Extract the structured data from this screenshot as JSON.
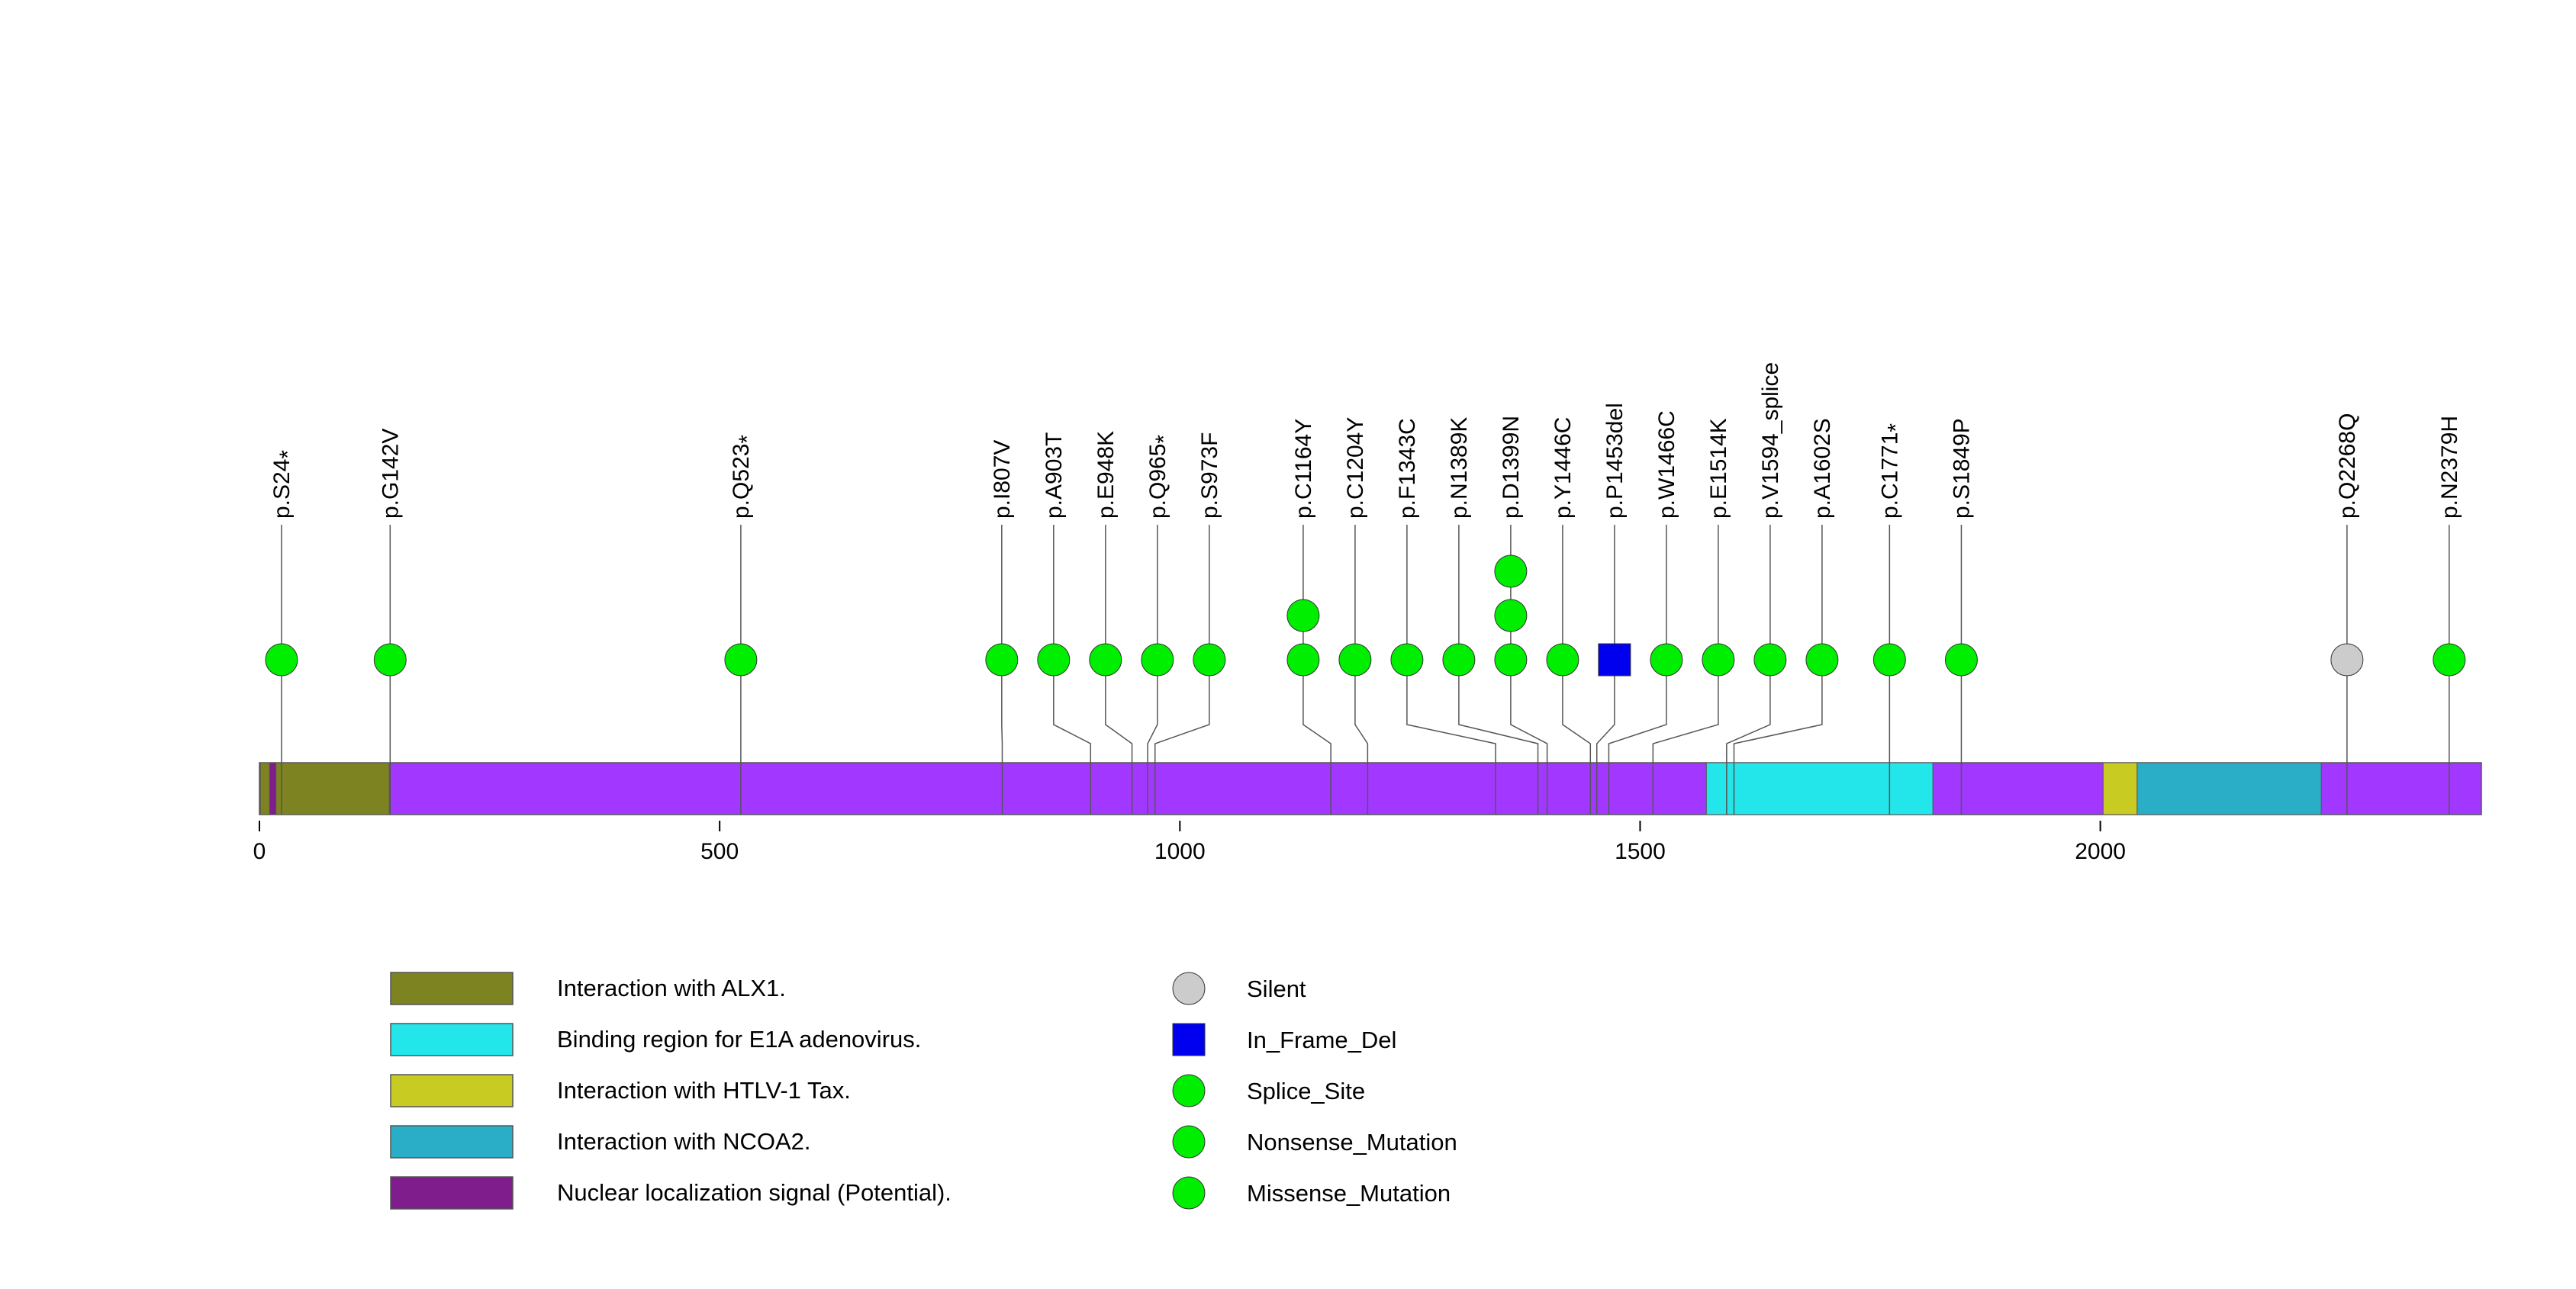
{
  "chart_data": {
    "type": "lollipop",
    "protein_length": 2414,
    "x_axis": {
      "range": [
        0,
        2414
      ],
      "ticks": [
        0,
        500,
        1000,
        1500,
        2000
      ]
    },
    "domains": [
      {
        "name": "Interaction with ALX1.",
        "start": 1,
        "end": 141,
        "color": "#7e8322"
      },
      {
        "name": "Nuclear localization signal (Potential).",
        "start": 11,
        "end": 18,
        "color": "#7f1d8c"
      },
      {
        "name": "Binding region for E1A adenovirus.",
        "start": 1572,
        "end": 1818,
        "color": "#22e6ea"
      },
      {
        "name": "Interaction with HTLV-1 Tax.",
        "start": 2003,
        "end": 2040,
        "color": "#c8cc22"
      },
      {
        "name": "Interaction with NCOA2.",
        "start": 2040,
        "end": 2240,
        "color": "#2aaec8"
      }
    ],
    "backbone_color": "#a238ff",
    "mutations": [
      {
        "label": "p.S24",
        "pos": 24,
        "count": 1,
        "type": "Nonsense_Mutation",
        "star": true
      },
      {
        "label": "p.G142V",
        "pos": 142,
        "count": 1,
        "type": "Missense_Mutation",
        "star": false
      },
      {
        "label": "p.Q523",
        "pos": 523,
        "count": 1,
        "type": "Nonsense_Mutation",
        "star": true
      },
      {
        "label": "p.I807V",
        "pos": 807,
        "count": 1,
        "type": "Missense_Mutation",
        "star": false
      },
      {
        "label": "p.A903T",
        "pos": 903,
        "count": 1,
        "type": "Missense_Mutation",
        "star": false
      },
      {
        "label": "p.E948K",
        "pos": 948,
        "count": 1,
        "type": "Missense_Mutation",
        "star": false
      },
      {
        "label": "p.Q965",
        "pos": 965,
        "count": 1,
        "type": "Nonsense_Mutation",
        "star": true
      },
      {
        "label": "p.S973F",
        "pos": 973,
        "count": 1,
        "type": "Missense_Mutation",
        "star": false
      },
      {
        "label": "p.C1164Y",
        "pos": 1164,
        "count": 2,
        "type": "Missense_Mutation",
        "star": false
      },
      {
        "label": "p.C1204Y",
        "pos": 1204,
        "count": 1,
        "type": "Missense_Mutation",
        "star": false
      },
      {
        "label": "p.F1343C",
        "pos": 1343,
        "count": 1,
        "type": "Missense_Mutation",
        "star": false
      },
      {
        "label": "p.N1389K",
        "pos": 1389,
        "count": 1,
        "type": "Missense_Mutation",
        "star": false
      },
      {
        "label": "p.D1399N",
        "pos": 1399,
        "count": 3,
        "type": "Missense_Mutation",
        "star": false
      },
      {
        "label": "p.Y1446C",
        "pos": 1446,
        "count": 1,
        "type": "Missense_Mutation",
        "star": false
      },
      {
        "label": "p.P1453del",
        "pos": 1453,
        "count": 1,
        "type": "In_Frame_Del",
        "star": false
      },
      {
        "label": "p.W1466C",
        "pos": 1466,
        "count": 1,
        "type": "Missense_Mutation",
        "star": false
      },
      {
        "label": "p.E1514K",
        "pos": 1514,
        "count": 1,
        "type": "Missense_Mutation",
        "star": false
      },
      {
        "label": "p.V1594_splice",
        "pos": 1594,
        "count": 1,
        "type": "Splice_Site",
        "star": false
      },
      {
        "label": "p.A1602S",
        "pos": 1602,
        "count": 1,
        "type": "Missense_Mutation",
        "star": false
      },
      {
        "label": "p.C1771",
        "pos": 1771,
        "count": 1,
        "type": "Nonsense_Mutation",
        "star": true
      },
      {
        "label": "p.S1849P",
        "pos": 1849,
        "count": 1,
        "type": "Missense_Mutation",
        "star": false
      },
      {
        "label": "p.Q2268Q",
        "pos": 2268,
        "count": 1,
        "type": "Silent",
        "star": false
      },
      {
        "label": "p.N2379H",
        "pos": 2379,
        "count": 1,
        "type": "Missense_Mutation",
        "star": false
      }
    ],
    "legend_domains": [
      {
        "name": "Interaction with ALX1.",
        "color": "#7e8322"
      },
      {
        "name": "Binding region for E1A adenovirus.",
        "color": "#22e6ea"
      },
      {
        "name": "Interaction with HTLV-1 Tax.",
        "color": "#c8cc22"
      },
      {
        "name": "Interaction with NCOA2.",
        "color": "#2aaec8"
      },
      {
        "name": "Nuclear localization signal (Potential).",
        "color": "#7f1d8c"
      }
    ],
    "legend_mutations": [
      {
        "name": "Silent",
        "shape": "circle",
        "color": "#cccccc"
      },
      {
        "name": "In_Frame_Del",
        "shape": "square",
        "color": "#0000ee"
      },
      {
        "name": "Splice_Site",
        "shape": "circle",
        "color": "#00ee00"
      },
      {
        "name": "Nonsense_Mutation",
        "shape": "circle",
        "color": "#00ee00"
      },
      {
        "name": "Missense_Mutation",
        "shape": "circle",
        "color": "#00ee00"
      }
    ]
  }
}
